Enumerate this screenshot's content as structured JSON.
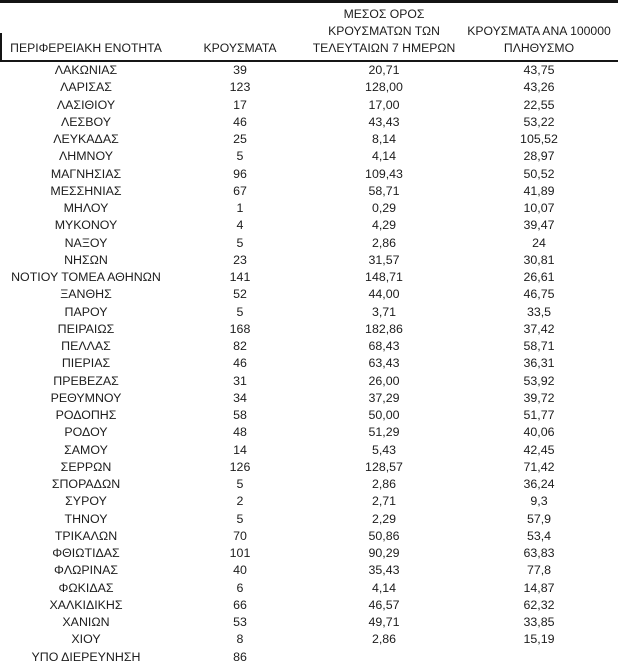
{
  "page": {
    "background_color": "#ffffff",
    "text_color": "#1c1c1c",
    "rule_color": "#141414"
  },
  "table": {
    "headers": [
      "ΠΕΡΙΦΕΡΕΙΑΚΗ ΕΝΟΤΗΤΑ",
      "ΚΡΟΥΣΜΑΤΑ",
      "ΜΕΣΟΣ ΟΡΟΣ\nΚΡΟΥΣΜΑΤΩΝ ΤΩΝ\nΤΕΛΕΥΤΑΙΩΝ 7 ΗΜΕΡΩΝ",
      "ΚΡΟΥΣΜΑΤΑ ΑΝΑ 100000\nΠΛΗΘΥΣΜΟ"
    ],
    "rows": [
      [
        "ΛΑΚΩΝΙΑΣ",
        "39",
        "20,71",
        "43,75"
      ],
      [
        "ΛΑΡΙΣΑΣ",
        "123",
        "128,00",
        "43,26"
      ],
      [
        "ΛΑΣΙΘΙΟΥ",
        "17",
        "17,00",
        "22,55"
      ],
      [
        "ΛΕΣΒΟΥ",
        "46",
        "43,43",
        "53,22"
      ],
      [
        "ΛΕΥΚΑΔΑΣ",
        "25",
        "8,14",
        "105,52"
      ],
      [
        "ΛΗΜΝΟΥ",
        "5",
        "4,14",
        "28,97"
      ],
      [
        "ΜΑΓΝΗΣΙΑΣ",
        "96",
        "109,43",
        "50,52"
      ],
      [
        "ΜΕΣΣΗΝΙΑΣ",
        "67",
        "58,71",
        "41,89"
      ],
      [
        "ΜΗΛΟΥ",
        "1",
        "0,29",
        "10,07"
      ],
      [
        "ΜΥΚΟΝΟΥ",
        "4",
        "4,29",
        "39,47"
      ],
      [
        "ΝΑΞΟΥ",
        "5",
        "2,86",
        "24"
      ],
      [
        "ΝΗΣΩΝ",
        "23",
        "31,57",
        "30,81"
      ],
      [
        "ΝΟΤΙΟΥ ΤΟΜΕΑ ΑΘΗΝΩΝ",
        "141",
        "148,71",
        "26,61"
      ],
      [
        "ΞΑΝΘΗΣ",
        "52",
        "44,00",
        "46,75"
      ],
      [
        "ΠΑΡΟΥ",
        "5",
        "3,71",
        "33,5"
      ],
      [
        "ΠΕΙΡΑΙΩΣ",
        "168",
        "182,86",
        "37,42"
      ],
      [
        "ΠΕΛΛΑΣ",
        "82",
        "68,43",
        "58,71"
      ],
      [
        "ΠΙΕΡΙΑΣ",
        "46",
        "63,43",
        "36,31"
      ],
      [
        "ΠΡΕΒΕΖΑΣ",
        "31",
        "26,00",
        "53,92"
      ],
      [
        "ΡΕΘΥΜΝΟΥ",
        "34",
        "37,29",
        "39,72"
      ],
      [
        "ΡΟΔΟΠΗΣ",
        "58",
        "50,00",
        "51,77"
      ],
      [
        "ΡΟΔΟΥ",
        "48",
        "51,29",
        "40,06"
      ],
      [
        "ΣΑΜΟΥ",
        "14",
        "5,43",
        "42,45"
      ],
      [
        "ΣΕΡΡΩΝ",
        "126",
        "128,57",
        "71,42"
      ],
      [
        "ΣΠΟΡΑΔΩΝ",
        "5",
        "2,86",
        "36,24"
      ],
      [
        "ΣΥΡΟΥ",
        "2",
        "2,71",
        "9,3"
      ],
      [
        "ΤΗΝΟΥ",
        "5",
        "2,29",
        "57,9"
      ],
      [
        "ΤΡΙΚΑΛΩΝ",
        "70",
        "50,86",
        "53,4"
      ],
      [
        "ΦΘΙΩΤΙΔΑΣ",
        "101",
        "90,29",
        "63,83"
      ],
      [
        "ΦΛΩΡΙΝΑΣ",
        "40",
        "35,43",
        "77,8"
      ],
      [
        "ΦΩΚΙΔΑΣ",
        "6",
        "4,14",
        "14,87"
      ],
      [
        "ΧΑΛΚΙΔΙΚΗΣ",
        "66",
        "46,57",
        "62,32"
      ],
      [
        "ΧΑΝΙΩΝ",
        "53",
        "49,71",
        "33,85"
      ],
      [
        "ΧΙΟΥ",
        "8",
        "2,86",
        "15,19"
      ],
      [
        "ΥΠΟ ΔΙΕΡΕΥΝΗΣΗ",
        "86",
        "",
        ""
      ]
    ]
  }
}
